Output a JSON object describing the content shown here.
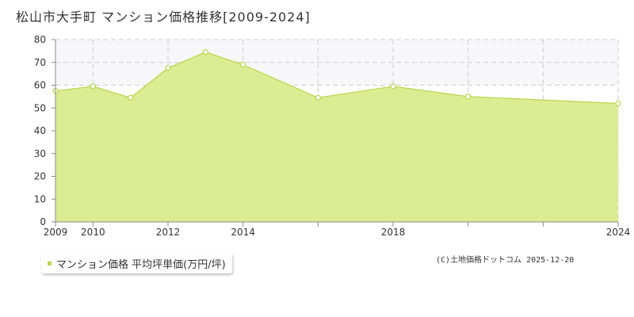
{
  "title": "松山市大手町 マンション価格推移[2009-2024]",
  "legend": {
    "label": "マンション価格 平均坪単価(万円/坪)"
  },
  "credit": "(C)土地価格ドットコム 2025-12-20",
  "colors": {
    "area_fill": "#dcec92",
    "line": "#b5d64a",
    "grid": "#cccccc",
    "plot_band_upper": "#f7f7f9",
    "axis": "#888888"
  },
  "chart_data": {
    "type": "area",
    "title": "松山市大手町 マンション価格推移[2009-2024]",
    "xlabel": "",
    "ylabel": "",
    "ylim": [
      0,
      80
    ],
    "yticks": [
      0,
      10,
      20,
      30,
      40,
      50,
      60,
      70,
      80
    ],
    "xlim": [
      2009,
      2024
    ],
    "xtick_labels": [
      "2009",
      "2010",
      "2012",
      "2014",
      "2018",
      "2024"
    ],
    "grid": true,
    "series": [
      {
        "name": "マンション価格 平均坪単価(万円/坪)",
        "x": [
          2009,
          2010,
          2011,
          2012,
          2013,
          2014,
          2016,
          2018,
          2020,
          2024
        ],
        "y": [
          57.5,
          59.5,
          54.5,
          67.5,
          74.5,
          69,
          54.5,
          59.5,
          55,
          52
        ]
      }
    ]
  }
}
